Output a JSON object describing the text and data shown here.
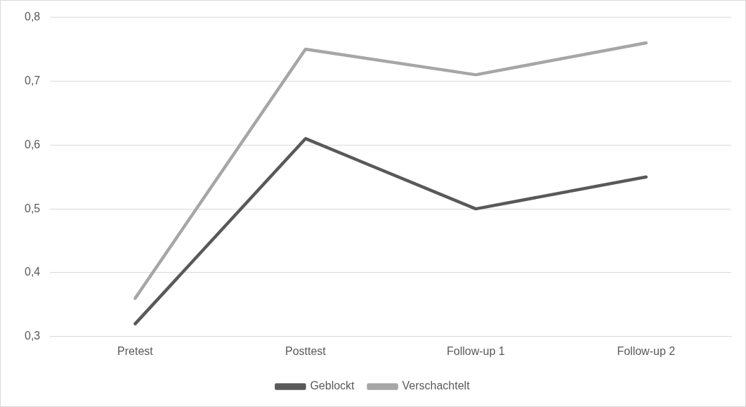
{
  "chart_data": {
    "type": "line",
    "categories": [
      "Pretest",
      "Posttest",
      "Follow-up 1",
      "Follow-up 2"
    ],
    "series": [
      {
        "name": "Geblockt",
        "color": "#595959",
        "values": [
          0.32,
          0.61,
          0.5,
          0.55
        ]
      },
      {
        "name": "Verschachtelt",
        "color": "#a6a6a6",
        "values": [
          0.36,
          0.75,
          0.71,
          0.76
        ]
      }
    ],
    "ylim": [
      0.3,
      0.8
    ],
    "yticks": [
      {
        "value": 0.3,
        "label": "0,3"
      },
      {
        "value": 0.4,
        "label": "0,4"
      },
      {
        "value": 0.5,
        "label": "0,5"
      },
      {
        "value": 0.6,
        "label": "0,6"
      },
      {
        "value": 0.7,
        "label": "0,7"
      },
      {
        "value": 0.8,
        "label": "0,8"
      }
    ],
    "grid": "y",
    "legend": "bottom",
    "marker": "none",
    "line_style": "solid"
  }
}
